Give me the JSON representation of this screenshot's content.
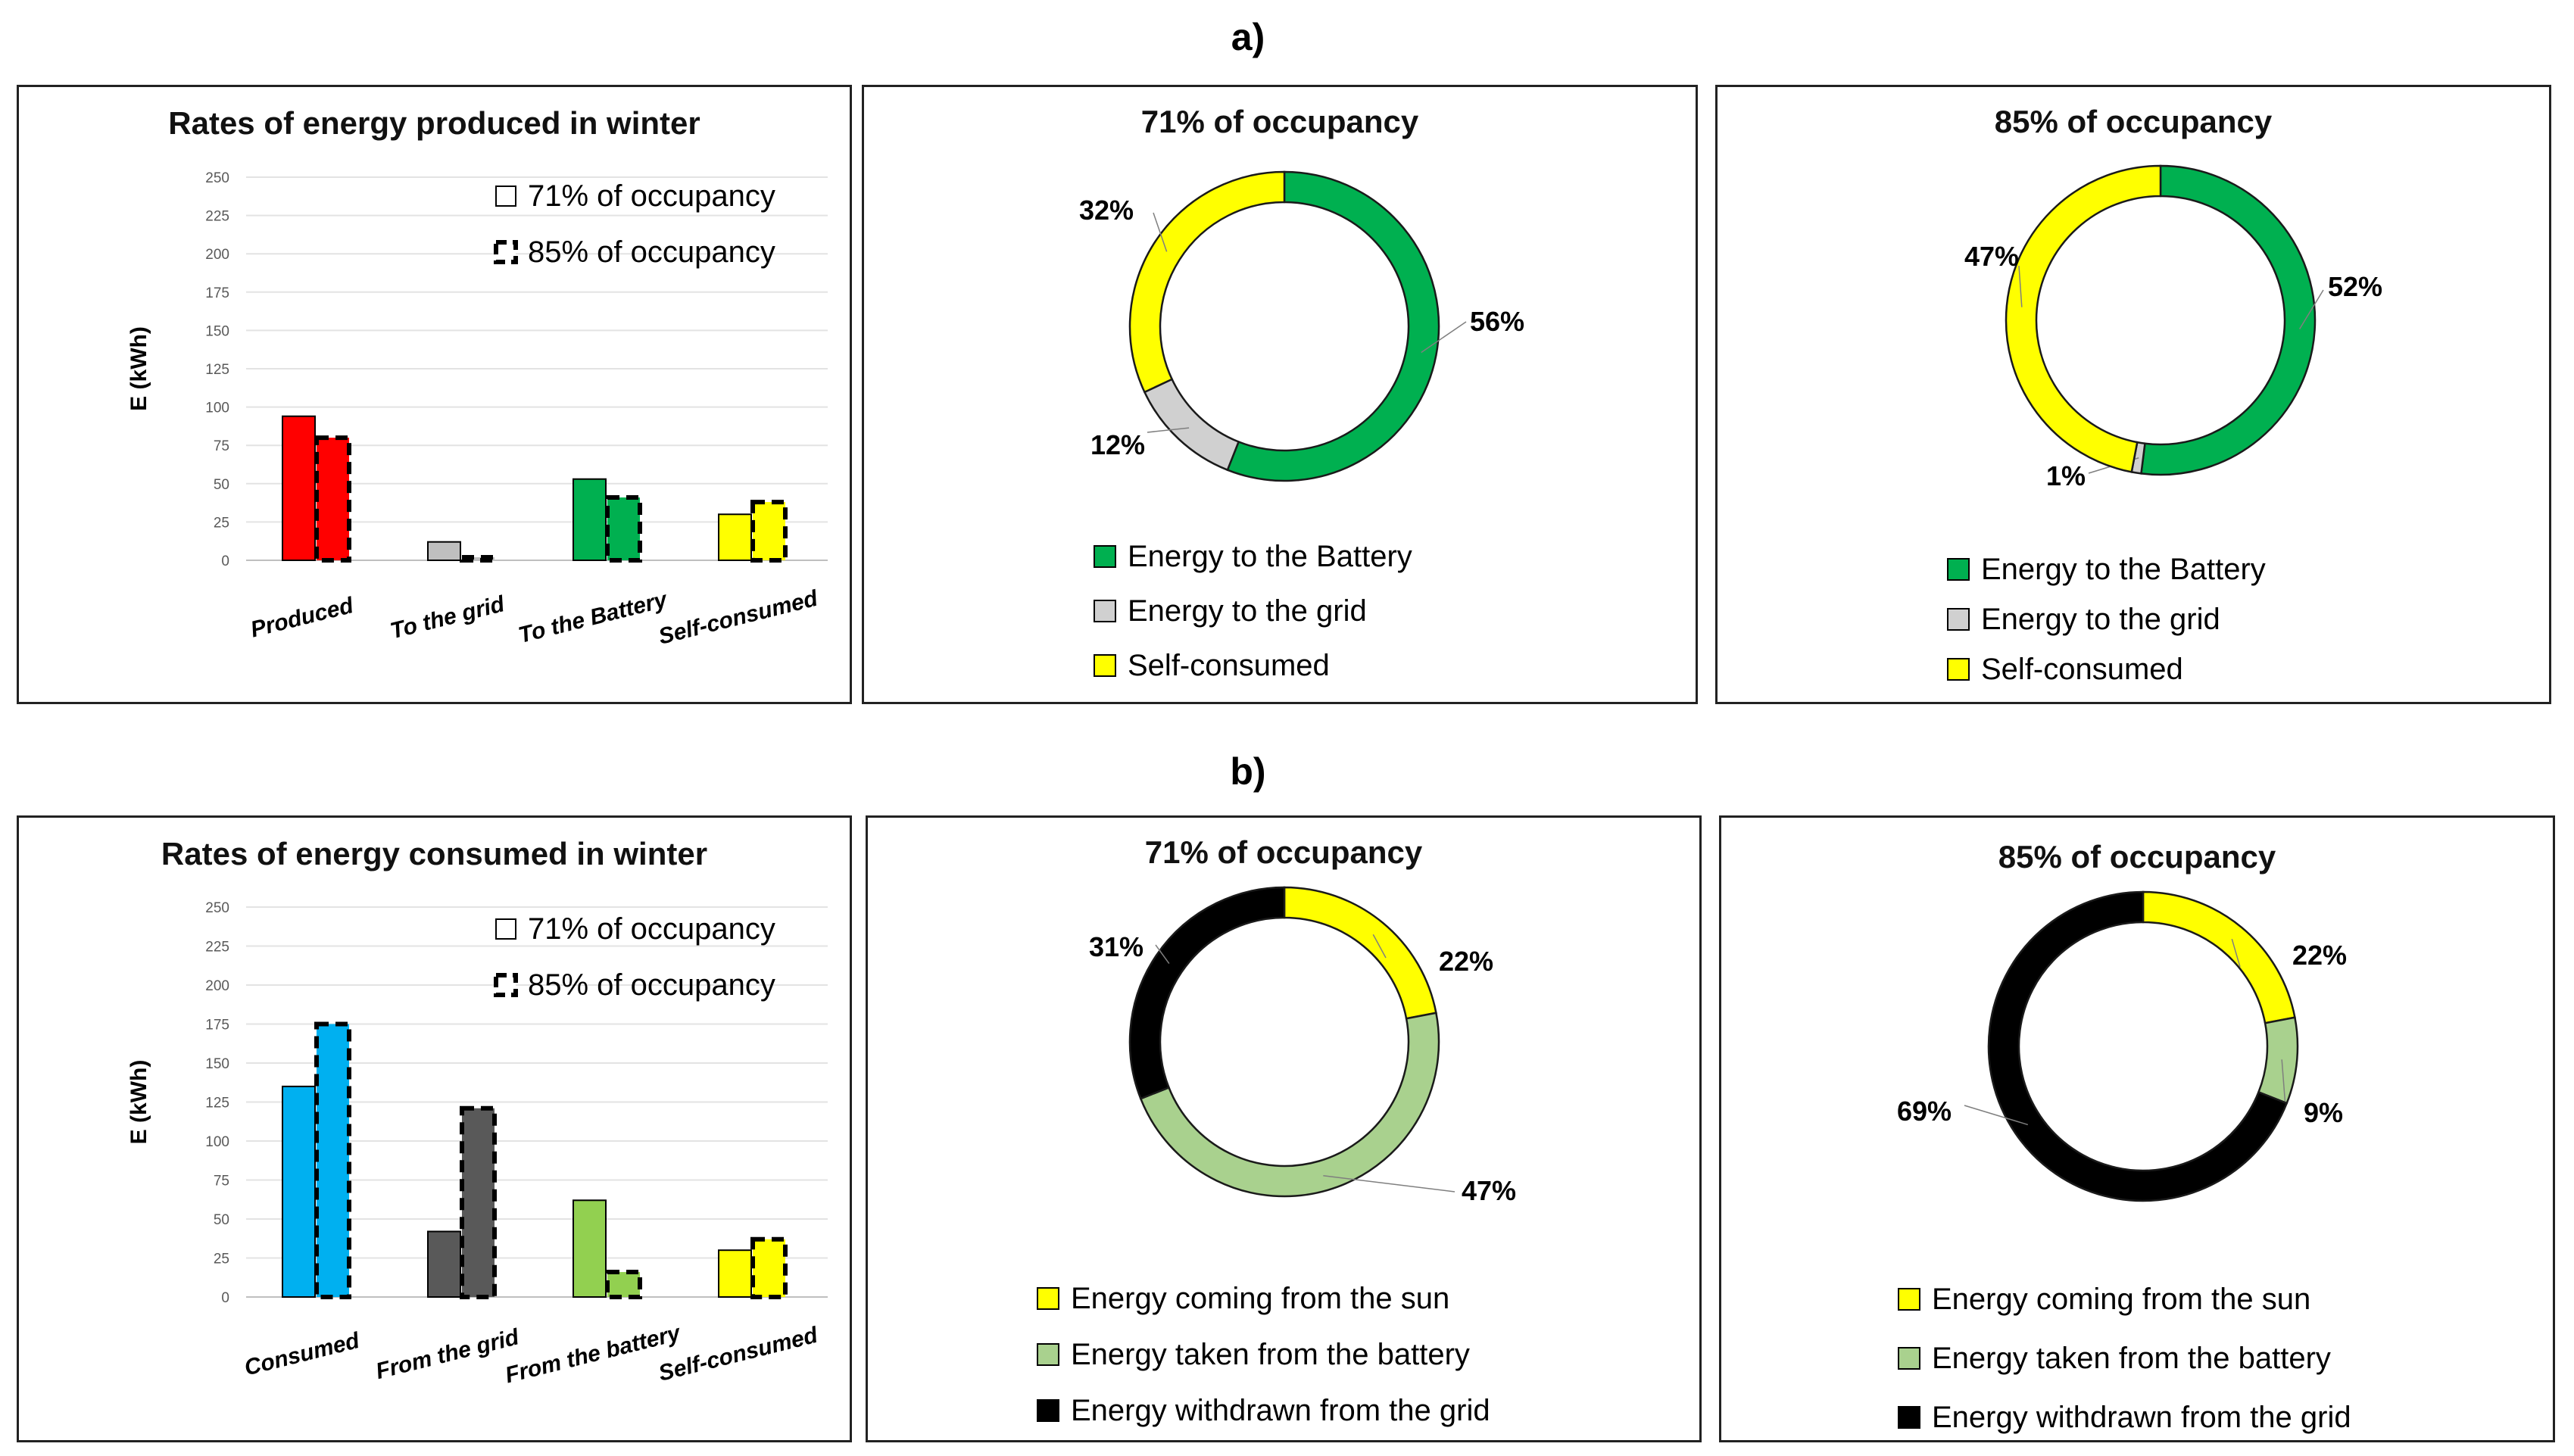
{
  "sections": {
    "a": "a)",
    "b": "b)"
  },
  "colors": {
    "produced": "#ff0000",
    "to_grid": "#bfbfbf",
    "to_battery": "#00b050",
    "self": "#ffff00",
    "consumed": "#00b0f0",
    "from_grid": "#595959",
    "from_battery": "#92d050",
    "sun": "#ffff00",
    "battery_light": "#a9d18e",
    "grid_black": "#000000"
  },
  "chart_data": [
    {
      "id": "prod_bar",
      "type": "bar",
      "title": "Rates of energy produced in winter",
      "ylabel": "E (kWh)",
      "xlabel": "",
      "ylim": [
        0,
        250
      ],
      "yticks": [
        "0",
        "25",
        "50",
        "75",
        "100",
        "125",
        "150",
        "175",
        "200",
        "225",
        "250"
      ],
      "categories": [
        "Produced",
        "To the grid",
        "To the Battery",
        "Self-consumed"
      ],
      "category_colors": [
        "#ff0000",
        "#bfbfbf",
        "#00b050",
        "#ffff00"
      ],
      "legend": [
        "71% of occupancy",
        "85% of occupancy"
      ],
      "series": [
        {
          "name": "71% of occupancy",
          "values": [
            94,
            12,
            53,
            30
          ]
        },
        {
          "name": "85% of occupancy",
          "values": [
            80,
            2,
            41,
            38
          ]
        }
      ]
    },
    {
      "id": "prod_pie71",
      "type": "pie",
      "title": "71% of occupancy",
      "labels": [
        "Energy to the Battery",
        "Energy to the grid",
        "Self-consumed"
      ],
      "values": [
        56,
        12,
        32
      ],
      "value_labels": [
        "56%",
        "12%",
        "32%"
      ],
      "colors": [
        "#00b050",
        "#d0d0d0",
        "#ffff00"
      ]
    },
    {
      "id": "prod_pie85",
      "type": "pie",
      "title": "85% of occupancy",
      "labels": [
        "Energy to the Battery",
        "Energy to the grid",
        "Self-consumed"
      ],
      "values": [
        52,
        1,
        47
      ],
      "value_labels": [
        "52%",
        "1%",
        "47%"
      ],
      "colors": [
        "#00b050",
        "#d0d0d0",
        "#ffff00"
      ]
    },
    {
      "id": "cons_bar",
      "type": "bar",
      "title": "Rates of energy consumed  in winter",
      "ylabel": "E (kWh)",
      "xlabel": "",
      "ylim": [
        0,
        250
      ],
      "yticks": [
        "0",
        "25",
        "50",
        "75",
        "100",
        "125",
        "150",
        "175",
        "200",
        "225",
        "250"
      ],
      "categories": [
        "Consumed",
        "From the grid",
        "From the battery",
        "Self-consumed"
      ],
      "category_colors": [
        "#00b0f0",
        "#595959",
        "#92d050",
        "#ffff00"
      ],
      "legend": [
        "71% of occupancy",
        "85% of occupancy"
      ],
      "series": [
        {
          "name": "71% of occupancy",
          "values": [
            135,
            42,
            62,
            30
          ]
        },
        {
          "name": "85% of occupancy",
          "values": [
            175,
            121,
            16,
            37
          ]
        }
      ]
    },
    {
      "id": "cons_pie71",
      "type": "pie",
      "title": "71% of occupancy",
      "labels": [
        "Energy coming from the sun",
        "Energy taken from the battery",
        "Energy withdrawn from the grid"
      ],
      "values": [
        22,
        47,
        31
      ],
      "value_labels": [
        "22%",
        "47%",
        "31%"
      ],
      "colors": [
        "#ffff00",
        "#a9d18e",
        "#000000"
      ]
    },
    {
      "id": "cons_pie85",
      "type": "pie",
      "title": "85% of occupancy",
      "labels": [
        "Energy coming from the sun",
        "Energy taken from the battery",
        "Energy withdrawn from the grid"
      ],
      "values": [
        22,
        9,
        69
      ],
      "value_labels": [
        "22%",
        "9%",
        "69%"
      ],
      "colors": [
        "#ffff00",
        "#a9d18e",
        "#000000"
      ]
    }
  ]
}
